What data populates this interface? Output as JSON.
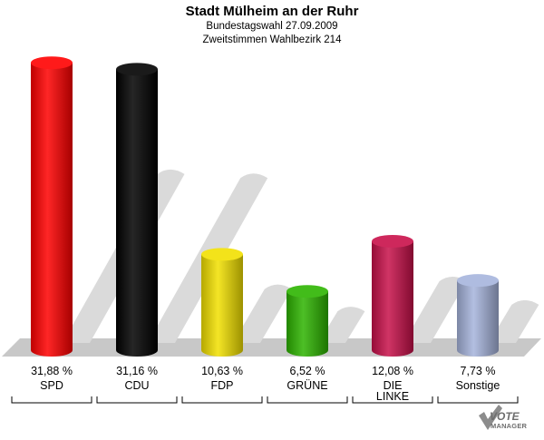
{
  "chart_data": {
    "type": "bar",
    "title": "Stadt Mülheim an der Ruhr",
    "subtitle": "Bundestagswahl 27.09.2009",
    "subtitle2": "Zweitstimmen Wahlbezirk 214",
    "categories": [
      "SPD",
      "CDU",
      "FDP",
      "GRÜNE",
      "DIE LINKE",
      "Sonstige"
    ],
    "values": [
      31.88,
      31.16,
      10.63,
      6.52,
      12.08,
      7.73
    ],
    "value_labels": [
      "31,88 %",
      "31,16 %",
      "10,63 %",
      "6,52 %",
      "12,08 %",
      "7,73 %"
    ],
    "colors": [
      "#ff0000",
      "#000000",
      "#f2e000",
      "#2db400",
      "#c8104a",
      "#a6b4dc"
    ],
    "ylim": [
      0,
      32
    ]
  },
  "logo": {
    "line1": "VOTE",
    "line2": "MANAGER"
  }
}
